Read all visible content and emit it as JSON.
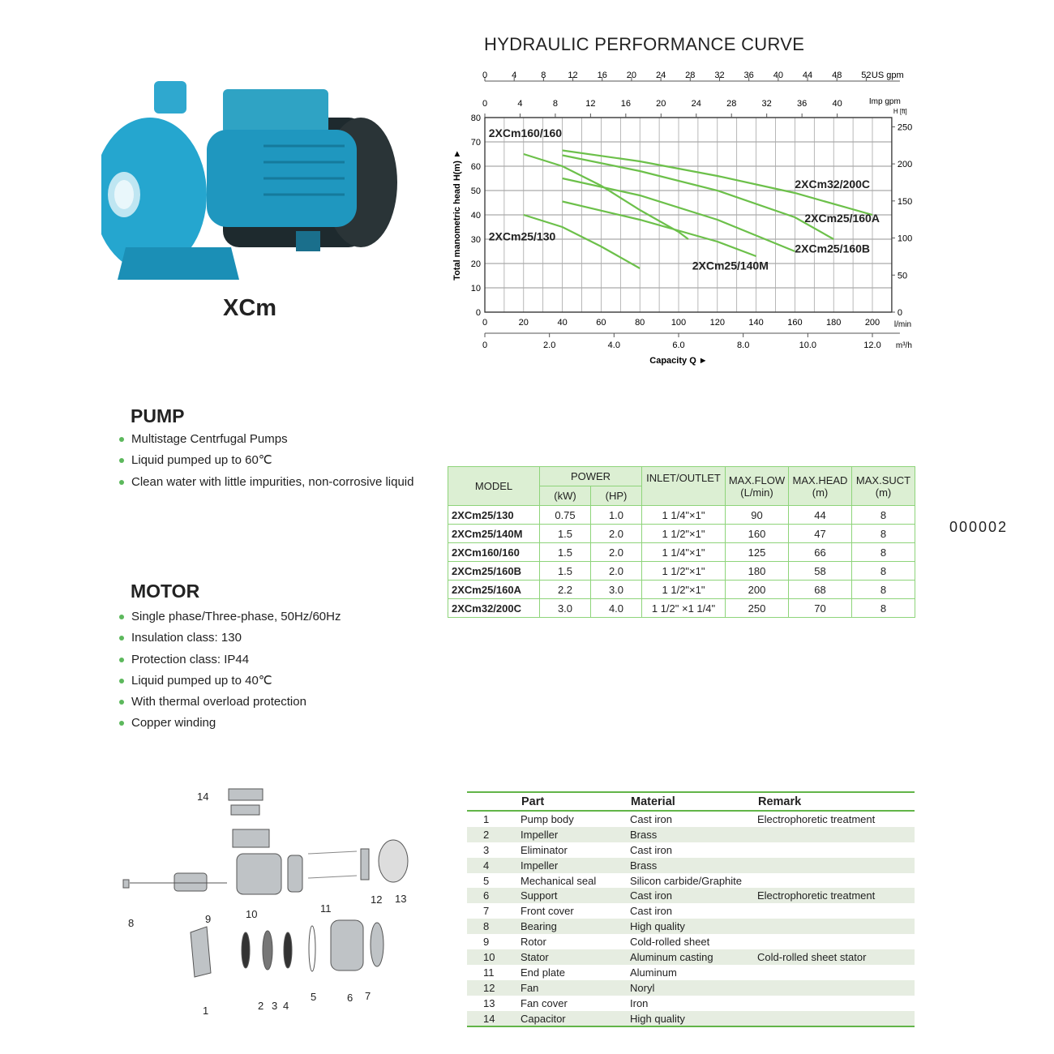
{
  "product": {
    "name": "XCm"
  },
  "page_code": "000002",
  "pump": {
    "title": "PUMP",
    "bullets": [
      "Multistage Centrfugal Pumps",
      "Liquid pumped up to 60℃",
      "Clean water with little impurities, non-corrosive liquid"
    ]
  },
  "motor": {
    "title": "MOTOR",
    "bullets": [
      "Single phase/Three-phase, 50Hz/60Hz",
      "Insulation class: 130",
      "Protection class: IP44",
      "Liquid pumped up to 40℃",
      "With thermal overload protection",
      "Copper winding"
    ]
  },
  "chart_data": {
    "type": "line",
    "title": "HYDRAULIC PERFORMANCE CURVE",
    "xlabel": "Capacity Q ►",
    "ylabel": "Total manometric head H(m) ►",
    "x_unit": "l/min",
    "xlim": [
      0,
      210
    ],
    "ylim": [
      0,
      80
    ],
    "grid": true,
    "x_ticks": [
      0,
      20,
      40,
      60,
      80,
      100,
      120,
      140,
      160,
      180,
      200
    ],
    "y_ticks": [
      0,
      10,
      20,
      30,
      40,
      50,
      60,
      70,
      80
    ],
    "secondary_axes": {
      "us_gpm": {
        "label": "US gpm",
        "ticks": [
          0,
          4,
          8,
          12,
          16,
          20,
          24,
          28,
          32,
          36,
          40,
          44,
          48,
          52
        ]
      },
      "imp_gpm": {
        "label": "Imp gpm",
        "ticks": [
          0,
          4,
          8,
          12,
          16,
          20,
          24,
          28,
          32,
          36,
          40
        ]
      },
      "m3h": {
        "label": "m³/h",
        "ticks": [
          "0",
          "2.0",
          "4.0",
          "6.0",
          "8.0",
          "10.0",
          "12.0"
        ]
      },
      "head_ft": {
        "label": "H [ft]",
        "ticks": [
          0,
          50,
          100,
          150,
          200,
          250
        ]
      }
    },
    "line_color": "#6cc04a",
    "series": [
      {
        "name": "2XCm160/160",
        "x": [
          20,
          40,
          60,
          80,
          100,
          105
        ],
        "y": [
          65,
          60,
          52,
          42,
          33,
          30
        ]
      },
      {
        "name": "2XCm32/200C",
        "x": [
          40,
          80,
          120,
          160,
          200
        ],
        "y": [
          66.5,
          62,
          56,
          49,
          40
        ]
      },
      {
        "name": "2XCm25/160A",
        "x": [
          40,
          80,
          120,
          160,
          180
        ],
        "y": [
          64.5,
          58,
          50,
          39,
          30
        ]
      },
      {
        "name": "2XCm25/160B",
        "x": [
          40,
          80,
          120,
          160
        ],
        "y": [
          55,
          48,
          38,
          25
        ]
      },
      {
        "name": "2XCm25/140M",
        "x": [
          40,
          80,
          120,
          140
        ],
        "y": [
          45.5,
          38,
          29,
          23
        ]
      },
      {
        "name": "2XCm25/130",
        "x": [
          20,
          40,
          60,
          80
        ],
        "y": [
          40,
          35,
          27,
          18
        ]
      }
    ]
  },
  "spec_table": {
    "headers": {
      "model": "MODEL",
      "power": "POWER",
      "kw": "(kW)",
      "hp": "(HP)",
      "inlet": "INLET/OUTLET",
      "flow": "MAX.FLOW",
      "flow_u": "(L/min)",
      "head": "MAX.HEAD",
      "head_u": "(m)",
      "suct": "MAX.SUCT",
      "suct_u": "(m)"
    },
    "rows": [
      [
        "2XCm25/130",
        "0.75",
        "1.0",
        "1 1/4\"×1\"",
        "90",
        "44",
        "8"
      ],
      [
        "2XCm25/140M",
        "1.5",
        "2.0",
        "1 1/2\"×1\"",
        "160",
        "47",
        "8"
      ],
      [
        "2XCm160/160",
        "1.5",
        "2.0",
        "1 1/4\"×1\"",
        "125",
        "66",
        "8"
      ],
      [
        "2XCm25/160B",
        "1.5",
        "2.0",
        "1 1/2\"×1\"",
        "180",
        "58",
        "8"
      ],
      [
        "2XCm25/160A",
        "2.2",
        "3.0",
        "1 1/2\"×1\"",
        "200",
        "68",
        "8"
      ],
      [
        "2XCm32/200C",
        "3.0",
        "4.0",
        "1 1/2\" ×1 1/4\"",
        "250",
        "70",
        "8"
      ]
    ]
  },
  "parts_table": {
    "headers": [
      "",
      "Part",
      "Material",
      "Remark"
    ],
    "rows": [
      [
        "1",
        "Pump body",
        "Cast iron",
        "Electrophoretic treatment"
      ],
      [
        "2",
        "Impeller",
        "Brass",
        ""
      ],
      [
        "3",
        "Eliminator",
        "Cast iron",
        ""
      ],
      [
        "4",
        "Impeller",
        "Brass",
        ""
      ],
      [
        "5",
        "Mechanical seal",
        "Silicon carbide/Graphite",
        ""
      ],
      [
        "6",
        "Support",
        "Cast iron",
        "Electrophoretic treatment"
      ],
      [
        "7",
        "Front cover",
        "Cast iron",
        ""
      ],
      [
        "8",
        "Bearing",
        "High quality",
        ""
      ],
      [
        "9",
        "Rotor",
        "Cold-rolled sheet",
        ""
      ],
      [
        "10",
        "Stator",
        "Aluminum casting",
        "Cold-rolled sheet stator"
      ],
      [
        "11",
        "End plate",
        "Aluminum",
        ""
      ],
      [
        "12",
        "Fan",
        "Noryl",
        ""
      ],
      [
        "13",
        "Fan cover",
        "Iron",
        ""
      ],
      [
        "14",
        "Capacitor",
        "High quality",
        ""
      ]
    ]
  },
  "diagram_labels": [
    "1",
    "2",
    "3",
    "4",
    "5",
    "6",
    "7",
    "8",
    "9",
    "10",
    "11",
    "12",
    "13",
    "14"
  ]
}
